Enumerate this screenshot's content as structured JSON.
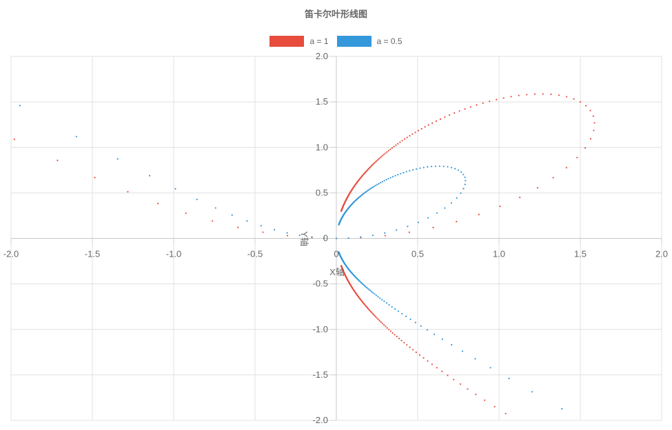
{
  "chart_data": {
    "type": "scatter",
    "title": "笛卡尔叶形线图",
    "xlabel": "X轴",
    "ylabel": "Y轴",
    "xlim": [
      -2.0,
      2.0
    ],
    "ylim": [
      -2.0,
      2.0
    ],
    "x_ticks": [
      "-2.0",
      "-1.5",
      "-1.0",
      "-0.5",
      "0",
      "0.5",
      "1.0",
      "1.5",
      "2.0"
    ],
    "y_ticks": [
      "2.0",
      "1.5",
      "1.0",
      "0.5",
      "0",
      "-0.5",
      "-1.0",
      "-1.5",
      "-2.0"
    ],
    "grid": true,
    "legend_position": "top-center",
    "series": [
      {
        "name": "a = 1",
        "a": 1,
        "color": "#e74c3c"
      },
      {
        "name": "a = 0.5",
        "a": 0.5,
        "color": "#3498db"
      }
    ]
  }
}
